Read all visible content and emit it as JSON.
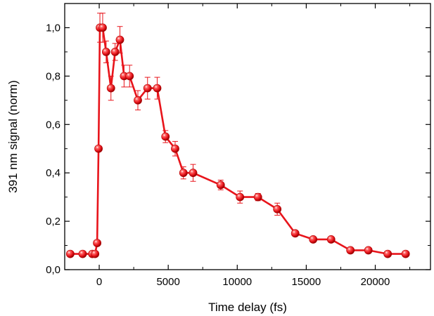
{
  "chart_data": {
    "type": "scatter",
    "title": "",
    "xlabel": "Time delay (fs)",
    "ylabel": "391 nm signal (norm)",
    "xlim": [
      -2500,
      24000
    ],
    "ylim": [
      0.0,
      1.1
    ],
    "xticks": [
      0,
      5000,
      10000,
      15000,
      20000
    ],
    "xtick_labels": [
      "0",
      "5000",
      "10000",
      "15000",
      "20000"
    ],
    "yticks": [
      0.0,
      0.2,
      0.4,
      0.6,
      0.8,
      1.0
    ],
    "ytick_labels": [
      "0,0",
      "0,2",
      "0,4",
      "0,6",
      "0,8",
      "1,0"
    ],
    "grid": false,
    "legend": false,
    "colors": {
      "series": "#e8141b",
      "axis": "#000000"
    },
    "series": [
      {
        "line": true,
        "markers": "sphere",
        "points": [
          {
            "x": -2100,
            "y": 0.065,
            "err": 0.0
          },
          {
            "x": -1200,
            "y": 0.065,
            "err": 0.0
          },
          {
            "x": -500,
            "y": 0.065,
            "err": 0.0
          },
          {
            "x": -300,
            "y": 0.065,
            "err": 0.0
          },
          {
            "x": -150,
            "y": 0.11,
            "err": 0.0
          },
          {
            "x": -50,
            "y": 0.5,
            "err": 0.0
          },
          {
            "x": 50,
            "y": 1.0,
            "err": 0.06
          },
          {
            "x": 250,
            "y": 1.0,
            "err": 0.06
          },
          {
            "x": 500,
            "y": 0.9,
            "err": 0.045
          },
          {
            "x": 850,
            "y": 0.75,
            "err": 0.05
          },
          {
            "x": 1150,
            "y": 0.9,
            "err": 0.035
          },
          {
            "x": 1500,
            "y": 0.95,
            "err": 0.055
          },
          {
            "x": 1800,
            "y": 0.8,
            "err": 0.045
          },
          {
            "x": 2200,
            "y": 0.8,
            "err": 0.045
          },
          {
            "x": 2800,
            "y": 0.7,
            "err": 0.04
          },
          {
            "x": 3500,
            "y": 0.75,
            "err": 0.045
          },
          {
            "x": 4200,
            "y": 0.75,
            "err": 0.045
          },
          {
            "x": 4800,
            "y": 0.55,
            "err": 0.025
          },
          {
            "x": 5500,
            "y": 0.5,
            "err": 0.03
          },
          {
            "x": 6100,
            "y": 0.4,
            "err": 0.025
          },
          {
            "x": 6800,
            "y": 0.4,
            "err": 0.035
          },
          {
            "x": 8800,
            "y": 0.35,
            "err": 0.02
          },
          {
            "x": 10200,
            "y": 0.3,
            "err": 0.025
          },
          {
            "x": 11500,
            "y": 0.3,
            "err": 0.015
          },
          {
            "x": 12900,
            "y": 0.25,
            "err": 0.025
          },
          {
            "x": 14200,
            "y": 0.15,
            "err": 0.01
          },
          {
            "x": 15500,
            "y": 0.125,
            "err": 0.01
          },
          {
            "x": 16800,
            "y": 0.125,
            "err": 0.01
          },
          {
            "x": 18200,
            "y": 0.08,
            "err": 0.01
          },
          {
            "x": 19500,
            "y": 0.08,
            "err": 0.01
          },
          {
            "x": 20900,
            "y": 0.065,
            "err": 0.01
          },
          {
            "x": 22200,
            "y": 0.065,
            "err": 0.01
          }
        ]
      }
    ]
  }
}
